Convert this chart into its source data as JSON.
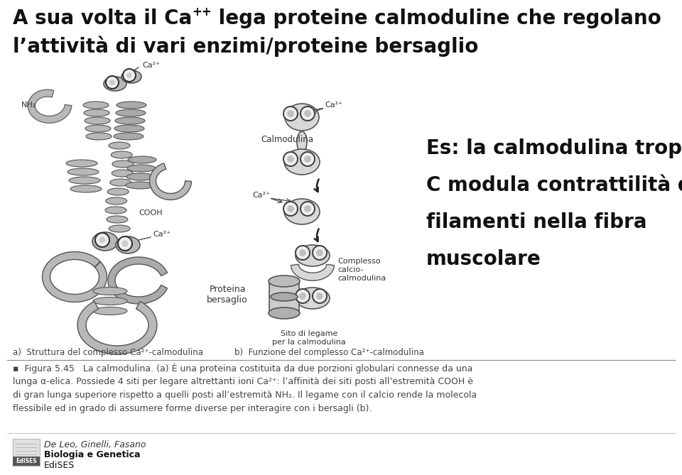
{
  "title_line1": "A sua volta il Ca",
  "title_superscript": "++",
  "title_line1_rest": " lega proteine calmoduline che regolano",
  "title_line2": "l’attività di vari enzimi/proteine bersaglio",
  "example_lines": [
    "Es: la calmodulina troponina",
    "C modula contrattilità dei",
    "filamenti nella fibra",
    "muscolare"
  ],
  "caption_label_a": "a)  Struttura del complesso Ca²⁺-calmodulina",
  "caption_label_b": "b)  Funzione del complesso Ca²⁺-calmodulina",
  "caption_lines": [
    "▪  Figura 5.45   La calmodulina. (a) È una proteina costituita da due porzioni globulari connesse da una",
    "lunga α-elica. Possiede 4 siti per legare altrettanti ioni Ca²⁺: l’affinità dei siti posti all’estremità COOH è",
    "di gran lunga superiore rispetto a quelli posti all’estremità NH₂. Il legame con il calcio rende la molecola",
    "flessibile ed in grado di assumere forme diverse per interagire con i bersagli (b)."
  ],
  "publisher_author": "De Leo, Ginelli, Fasano",
  "publisher_book": "Biologia e Genetica",
  "publisher_name": "EdiSES",
  "bg_color": "#ffffff",
  "title_color": "#111111",
  "caption_color": "#444444",
  "title_fontsize": 20,
  "example_fontsize": 20,
  "caption_fontsize": 9
}
